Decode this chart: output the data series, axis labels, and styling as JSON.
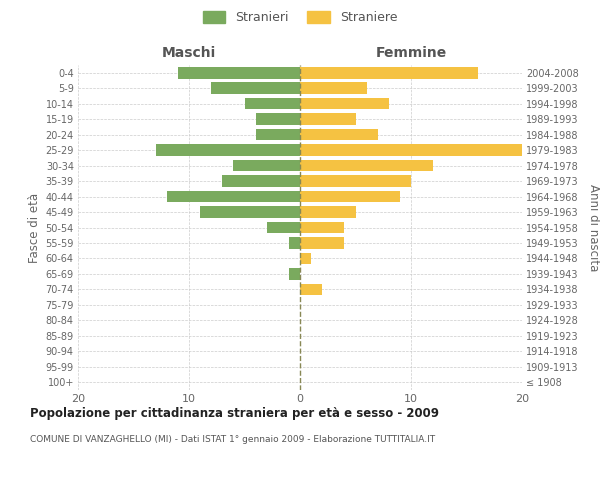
{
  "age_groups": [
    "100+",
    "95-99",
    "90-94",
    "85-89",
    "80-84",
    "75-79",
    "70-74",
    "65-69",
    "60-64",
    "55-59",
    "50-54",
    "45-49",
    "40-44",
    "35-39",
    "30-34",
    "25-29",
    "20-24",
    "15-19",
    "10-14",
    "5-9",
    "0-4"
  ],
  "birth_years": [
    "≤ 1908",
    "1909-1913",
    "1914-1918",
    "1919-1923",
    "1924-1928",
    "1929-1933",
    "1934-1938",
    "1939-1943",
    "1944-1948",
    "1949-1953",
    "1954-1958",
    "1959-1963",
    "1964-1968",
    "1969-1973",
    "1974-1978",
    "1979-1983",
    "1984-1988",
    "1989-1993",
    "1994-1998",
    "1999-2003",
    "2004-2008"
  ],
  "males": [
    0,
    0,
    0,
    0,
    0,
    0,
    0,
    1,
    0,
    1,
    3,
    9,
    12,
    7,
    6,
    13,
    4,
    4,
    5,
    8,
    11
  ],
  "females": [
    0,
    0,
    0,
    0,
    0,
    0,
    2,
    0,
    1,
    4,
    4,
    5,
    9,
    10,
    12,
    20,
    7,
    5,
    8,
    6,
    16
  ],
  "male_color": "#7aaa5e",
  "female_color": "#f5c242",
  "grid_color": "#cccccc",
  "center_line_color": "#888855",
  "title": "Popolazione per cittadinanza straniera per età e sesso - 2009",
  "subtitle": "COMUNE DI VANZAGHELLO (MI) - Dati ISTAT 1° gennaio 2009 - Elaborazione TUTTITALIA.IT",
  "xlabel_left": "Maschi",
  "xlabel_right": "Femmine",
  "ylabel_left": "Fasce di età",
  "ylabel_right": "Anni di nascita",
  "legend_male": "Stranieri",
  "legend_female": "Straniere",
  "xlim": [
    -20,
    20
  ],
  "background_color": "#ffffff"
}
